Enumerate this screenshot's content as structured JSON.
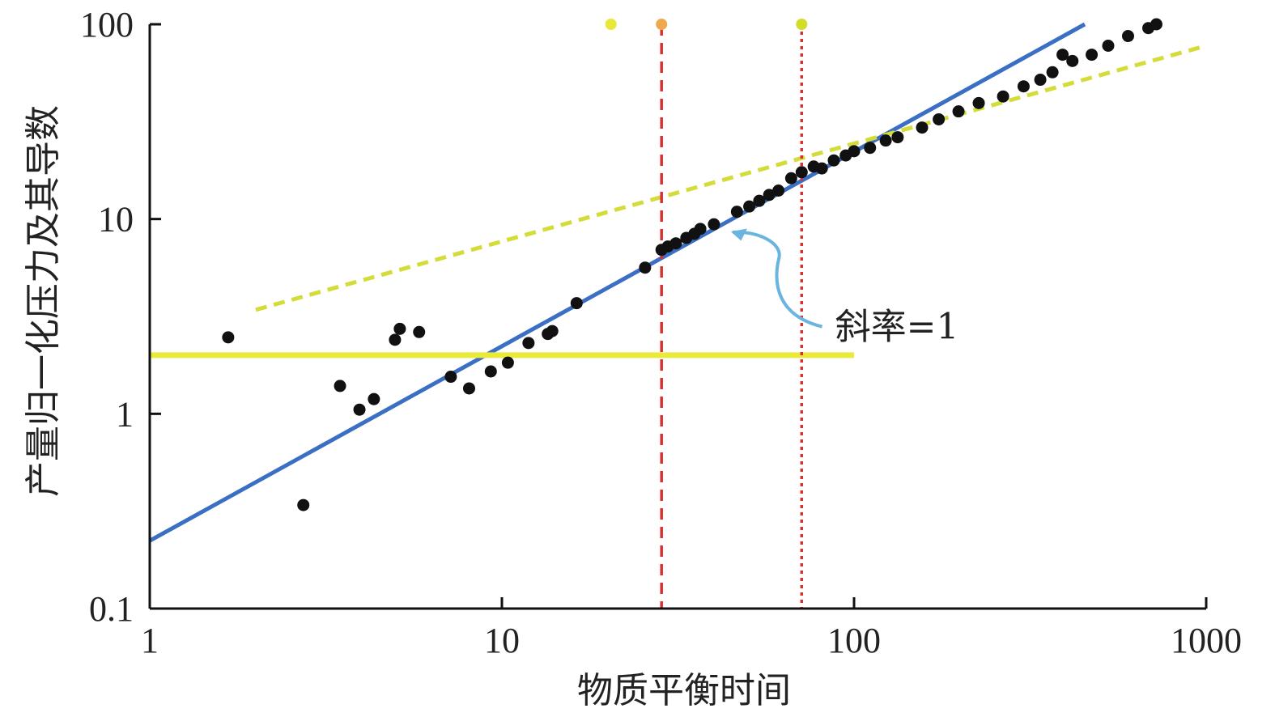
{
  "chart_data": {
    "type": "scatter",
    "title": "",
    "xlabel": "物质平衡时间",
    "ylabel": "产量归一化压力及其导数",
    "xscale": "log",
    "yscale": "log",
    "xlim": [
      1,
      1000
    ],
    "ylim": [
      0.1,
      100
    ],
    "x_ticks": [
      "1",
      "10",
      "100",
      "1000"
    ],
    "y_ticks": [
      "0.1",
      "1",
      "10",
      "100"
    ],
    "x_tick_values": [
      1,
      10,
      100,
      1000
    ],
    "y_tick_values": [
      0.1,
      1,
      10,
      100
    ],
    "grid": false,
    "series": [
      {
        "name": "data",
        "kind": "scatter",
        "color": "#111111",
        "x": [
          1.67,
          2.73,
          3.47,
          3.94,
          4.33,
          4.97,
          5.13,
          5.82,
          7.16,
          8.07,
          9.3,
          10.4,
          11.9,
          13.5,
          13.9,
          16.3,
          25.5,
          28.4,
          29.6,
          31.2,
          33.4,
          35.2,
          36.6,
          40,
          46.5,
          50.4,
          53.8,
          57.4,
          61,
          66.3,
          71,
          76.8,
          81,
          87.6,
          94.7,
          100,
          111,
          123,
          133,
          156,
          174,
          198,
          226,
          265,
          303,
          338,
          366,
          391,
          417,
          473,
          527,
          600,
          685,
          722
        ],
        "y": [
          2.47,
          0.34,
          1.39,
          1.05,
          1.19,
          2.4,
          2.73,
          2.63,
          1.55,
          1.35,
          1.65,
          1.83,
          2.31,
          2.57,
          2.66,
          3.7,
          5.63,
          6.95,
          7.23,
          7.5,
          8.0,
          8.4,
          8.9,
          9.4,
          10.9,
          11.6,
          12.4,
          13.3,
          14.0,
          16.2,
          17.4,
          18.6,
          18.2,
          20.0,
          21.2,
          22.3,
          23.2,
          25.3,
          26.3,
          29.5,
          32.5,
          35.7,
          39.4,
          42.6,
          48.0,
          51.9,
          56.7,
          69.8,
          64.8,
          69.8,
          77.6,
          87.0,
          95.6,
          100.0
        ]
      },
      {
        "name": "slope-1 line",
        "kind": "line",
        "color": "#3a6fc4",
        "style": "solid",
        "x": [
          1,
          452
        ],
        "y": [
          0.223,
          100
        ]
      },
      {
        "name": "slope-0.5 line",
        "kind": "line",
        "color": "#d4dc3a",
        "style": "dashed",
        "x": [
          2,
          1000
        ],
        "y": [
          3.42,
          77.6
        ]
      },
      {
        "name": "horizontal line",
        "kind": "line",
        "color": "#eaea3a",
        "style": "solid",
        "x": [
          1,
          100
        ],
        "y": [
          2,
          2
        ]
      },
      {
        "name": "vertical red dashed",
        "kind": "vline",
        "color": "#d93030",
        "style": "dashed",
        "x": 28.4
      },
      {
        "name": "vertical red dotted",
        "kind": "vline",
        "color": "#d93030",
        "style": "dotted",
        "x": 71
      }
    ],
    "markers_top": [
      {
        "x": 20.4,
        "y": 100,
        "color": "#e8e83a"
      },
      {
        "x": 28.4,
        "y": 100,
        "color": "#f0a850"
      },
      {
        "x": 71,
        "y": 100,
        "color": "#d4dc2a"
      }
    ],
    "annotations": [
      {
        "text": "斜率=1",
        "x": 150,
        "y": 2.8,
        "arrow_to": [
          42,
          8.9
        ],
        "arrow_color": "#6ab4e0"
      }
    ]
  }
}
